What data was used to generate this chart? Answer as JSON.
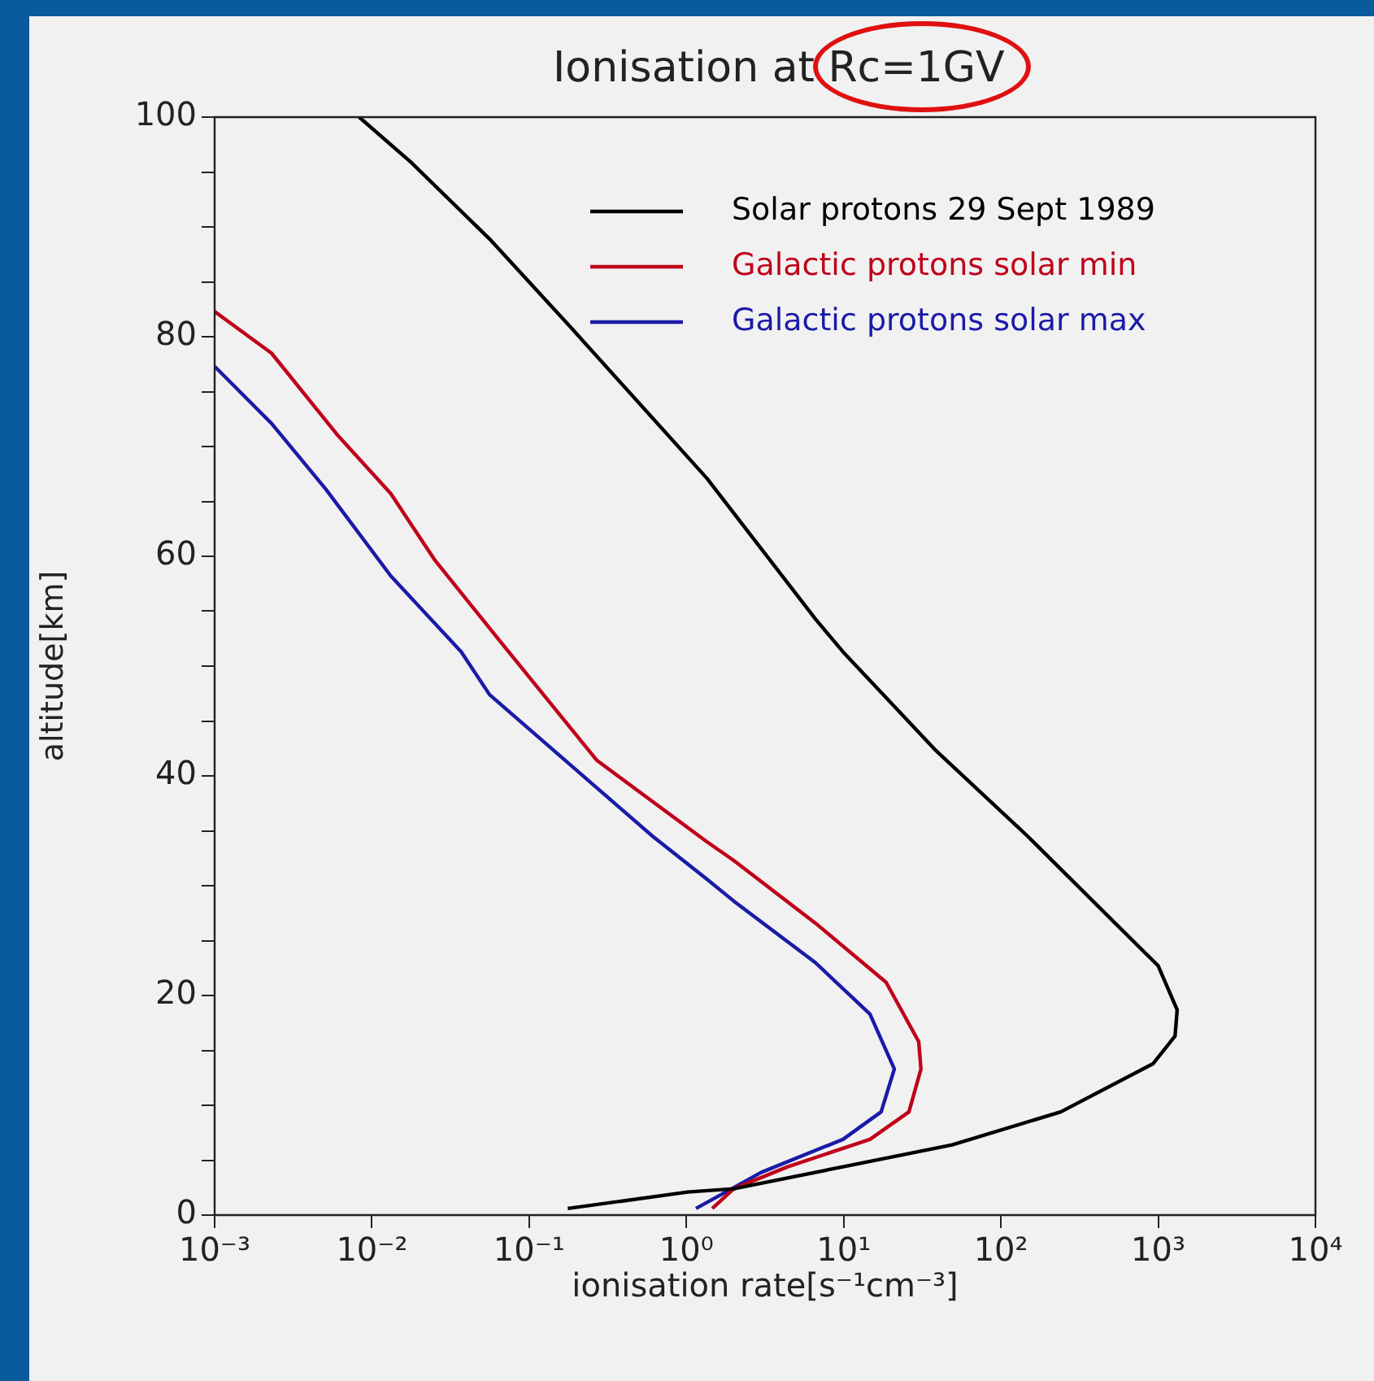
{
  "chart_data": {
    "type": "line",
    "title": "Ionisation at Rc=1GV",
    "xlabel": "ionisation rate[s⁻¹cm⁻³]",
    "ylabel": "altitude[km]",
    "log": "x",
    "grid": false,
    "legend": "top right",
    "marker": "none",
    "line_style": "solid",
    "xlim": [
      0.001,
      10000
    ],
    "xticks": [
      {
        "value": 0.001,
        "label": "10⁻³"
      },
      {
        "value": 0.01,
        "label": "10⁻²"
      },
      {
        "value": 0.1,
        "label": "10⁻¹"
      },
      {
        "value": 1,
        "label": "10⁰"
      },
      {
        "value": 10,
        "label": "10¹"
      },
      {
        "value": 100,
        "label": "10²"
      },
      {
        "value": 1000,
        "label": "10³"
      },
      {
        "value": 10000,
        "label": "10⁴"
      }
    ],
    "ylim": [
      0,
      100
    ],
    "yticks": [
      0,
      {
        "value": 5,
        "label": null
      },
      {
        "value": 10,
        "label": null
      },
      {
        "value": 15,
        "label": null
      },
      20,
      {
        "value": 25,
        "label": null
      },
      {
        "value": 30,
        "label": null
      },
      {
        "value": 35,
        "label": null
      },
      40,
      {
        "value": 45,
        "label": null
      },
      {
        "value": 50,
        "label": null
      },
      {
        "value": 55,
        "label": null
      },
      60,
      {
        "value": 65,
        "label": null
      },
      {
        "value": 70,
        "label": null
      },
      {
        "value": 75,
        "label": null
      },
      80,
      {
        "value": 85,
        "label": null
      },
      {
        "value": 90,
        "label": null
      },
      {
        "value": 95,
        "label": null
      },
      100
    ],
    "series": [
      {
        "name": "Solar protons 29 Sept 1989",
        "color": "#000000",
        "x": [
          0.0083,
          0.018,
          0.056,
          0.18,
          1.35,
          6.6,
          9.9,
          38,
          148,
          531,
          1000,
          1320,
          1280,
          930,
          240,
          49,
          9.9,
          2.0,
          1.02,
          0.176
        ],
        "values": [
          100,
          95.8,
          88.9,
          81.0,
          67.1,
          54.3,
          51.3,
          42.4,
          34.5,
          26.6,
          22.7,
          18.7,
          16.3,
          13.8,
          9.4,
          6.4,
          4.4,
          2.4,
          2.1,
          0.6
        ]
      },
      {
        "name": "Galactic protons solar min",
        "color": "#c0001a",
        "x": [
          0.001,
          0.0023,
          0.006,
          0.0132,
          0.025,
          0.065,
          0.27,
          1.35,
          2.0,
          6.6,
          18.6,
          30,
          31,
          26,
          14.7,
          4.4,
          2.0,
          1.46
        ],
        "values": [
          82.3,
          78.5,
          71.1,
          65.7,
          59.7,
          52.3,
          41.4,
          34.0,
          32.3,
          26.6,
          21.2,
          15.8,
          13.3,
          9.4,
          6.9,
          4.4,
          2.4,
          0.6
        ]
      },
      {
        "name": "Galactic protons solar max",
        "color": "#1a1aa8",
        "x": [
          0.001,
          0.0023,
          0.0051,
          0.0132,
          0.037,
          0.056,
          0.17,
          0.61,
          1.35,
          2.0,
          6.6,
          14.7,
          21,
          17.3,
          9.9,
          3.0,
          1.15
        ],
        "values": [
          77.3,
          72.1,
          66.1,
          58.2,
          51.3,
          47.4,
          41.4,
          34.5,
          30.6,
          28.6,
          23.0,
          18.3,
          13.3,
          9.4,
          6.9,
          3.9,
          0.6
        ]
      }
    ]
  }
}
